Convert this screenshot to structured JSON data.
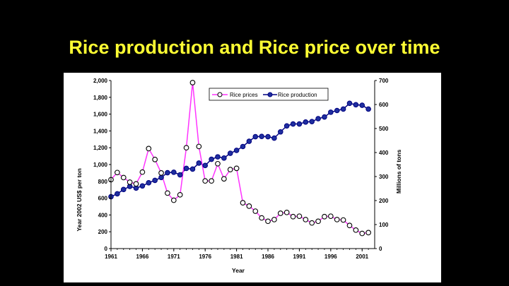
{
  "slide": {
    "title": "Rice production and Rice price over time"
  },
  "colors": {
    "background": "#000000",
    "title": "#ffff33",
    "price_line": "#ff33ff",
    "production_line": "#000080",
    "production_marker": "#1f2f9f"
  },
  "chart_data": {
    "type": "line",
    "title": "",
    "xlabel": "Year",
    "ylabel": "Year 2002 US$ per ton",
    "y2label": "Millions of tons",
    "xlim": [
      1961,
      2003
    ],
    "ylim": [
      0,
      2000
    ],
    "y2lim": [
      0,
      700
    ],
    "x_ticks": [
      "1961",
      "1966",
      "1971",
      "1976",
      "1981",
      "1986",
      "1991",
      "1996",
      "2001"
    ],
    "y_ticks": [
      "0",
      "200",
      "400",
      "600",
      "800",
      "1,000",
      "1,200",
      "1,400",
      "1,600",
      "1,800",
      "2,000"
    ],
    "y2_ticks": [
      "0",
      "100",
      "200",
      "300",
      "400",
      "500",
      "600",
      "700"
    ],
    "legend_position": "top-right",
    "x": [
      1961,
      1962,
      1963,
      1964,
      1965,
      1966,
      1967,
      1968,
      1969,
      1970,
      1971,
      1972,
      1973,
      1974,
      1975,
      1976,
      1977,
      1978,
      1979,
      1980,
      1981,
      1982,
      1983,
      1984,
      1985,
      1986,
      1987,
      1988,
      1989,
      1990,
      1991,
      1992,
      1993,
      1994,
      1995,
      1996,
      1997,
      1998,
      1999,
      2000,
      2001,
      2002
    ],
    "series": [
      {
        "name": "Rice prices",
        "axis": "left",
        "values": [
          820,
          905,
          845,
          790,
          770,
          910,
          1190,
          1060,
          900,
          660,
          575,
          640,
          1200,
          1975,
          1215,
          805,
          805,
          1010,
          830,
          940,
          955,
          545,
          505,
          445,
          365,
          325,
          345,
          420,
          430,
          380,
          385,
          345,
          305,
          325,
          380,
          385,
          345,
          340,
          275,
          220,
          180,
          190
        ]
      },
      {
        "name": "Rice production",
        "axis": "right",
        "values": [
          216,
          228,
          246,
          259,
          252,
          261,
          274,
          284,
          296,
          316,
          318,
          307,
          334,
          331,
          356,
          346,
          372,
          382,
          377,
          397,
          409,
          425,
          447,
          466,
          467,
          466,
          460,
          486,
          511,
          519,
          519,
          527,
          529,
          541,
          548,
          568,
          575,
          581,
          605,
          599,
          597,
          581
        ]
      }
    ]
  }
}
